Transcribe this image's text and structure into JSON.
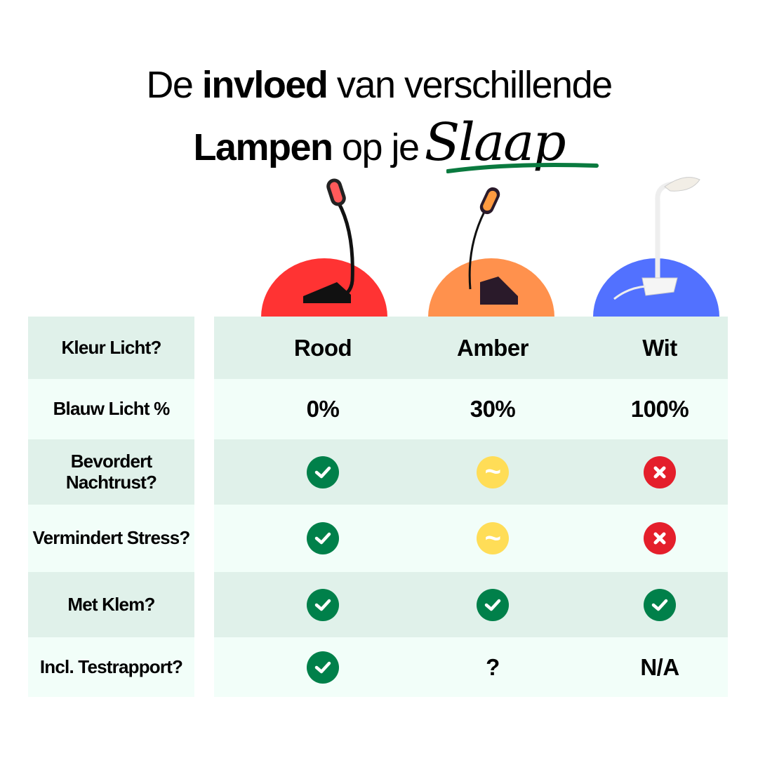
{
  "title": {
    "line1_pre": "De ",
    "line1_bold": "invloed",
    "line1_post": " van verschillende",
    "line2_bold": "Lampen",
    "line2_post": " op je",
    "line2_script": "Slaap"
  },
  "colors": {
    "rood": "#ff3333",
    "amber": "#ff914d",
    "wit": "#5271ff",
    "check": "#00804a",
    "partial": "#ffdd57",
    "cross": "#e41f2b",
    "row_dark": "#e0f1ea",
    "row_light": "#f2fef9",
    "underline": "#0a7a3f"
  },
  "rows": [
    {
      "label": "Kleur Licht?",
      "cells": [
        {
          "text": "Rood"
        },
        {
          "text": "Amber"
        },
        {
          "text": "Wit"
        }
      ]
    },
    {
      "label": "Blauw Licht %",
      "cells": [
        {
          "text": "0%"
        },
        {
          "text": "30%"
        },
        {
          "text": "100%"
        }
      ]
    },
    {
      "label": "Bevordert Nachtrust?",
      "cells": [
        {
          "icon": "check-icon"
        },
        {
          "icon": "tilde-icon"
        },
        {
          "icon": "cross-icon"
        }
      ]
    },
    {
      "label": "Vermindert Stress?",
      "cells": [
        {
          "icon": "check-icon"
        },
        {
          "icon": "tilde-icon"
        },
        {
          "icon": "cross-icon"
        }
      ]
    },
    {
      "label": "Met Klem?",
      "cells": [
        {
          "icon": "check-icon"
        },
        {
          "icon": "check-icon"
        },
        {
          "icon": "check-icon"
        }
      ]
    },
    {
      "label": "Incl. Testrapport?",
      "cells": [
        {
          "icon": "check-icon"
        },
        {
          "text": "?"
        },
        {
          "text": "N/A"
        }
      ]
    }
  ]
}
